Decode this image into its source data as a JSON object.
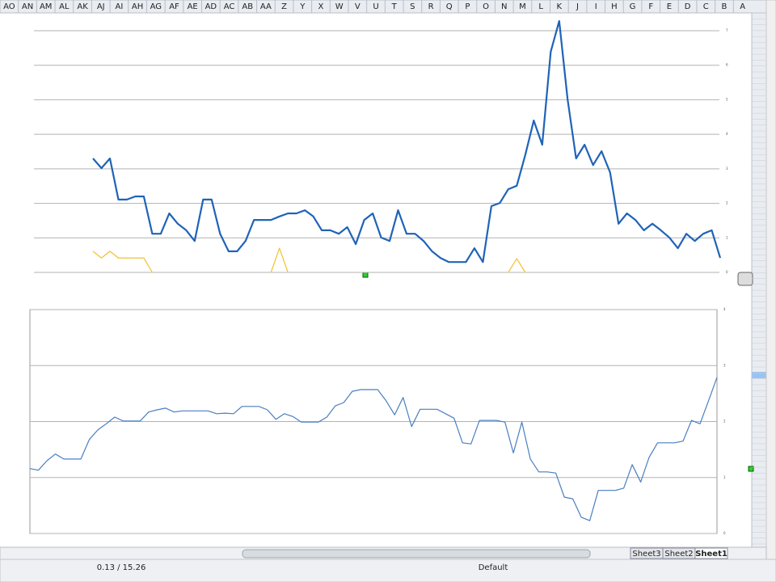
{
  "columns": [
    "A",
    "B",
    "C",
    "D",
    "E",
    "F",
    "G",
    "H",
    "I",
    "J",
    "K",
    "L",
    "M",
    "N",
    "O",
    "P",
    "Q",
    "R",
    "S",
    "T",
    "U",
    "V",
    "W",
    "X",
    "Y",
    "Z",
    "AA",
    "AB",
    "AC",
    "AD",
    "AE",
    "AF",
    "AG",
    "AH",
    "AI",
    "AJ",
    "AK",
    "AL",
    "AM",
    "AN",
    "AO"
  ],
  "tabs": [
    "Sheet1",
    "Sheet2",
    "Sheet3"
  ],
  "status": {
    "style": "Default",
    "selection": "0.13 / 15.26"
  },
  "chart_data": [
    {
      "type": "line",
      "ylim": [
        0,
        7
      ],
      "yticks": [
        0,
        1,
        2,
        3,
        4,
        5,
        6,
        7
      ],
      "grid": true,
      "series": [
        {
          "color": "#1f63b8",
          "values": [
            3.3,
            3.02,
            3.3,
            2.11,
            2.11,
            2.2,
            2.2,
            1.12,
            1.12,
            1.71,
            1.41,
            1.22,
            0.91,
            2.11,
            2.11,
            1.12,
            0.61,
            0.61,
            0.91,
            1.52,
            1.52,
            1.52,
            1.62,
            1.71,
            1.71,
            1.8,
            1.62,
            1.22,
            1.22,
            1.12,
            1.31,
            0.82,
            1.52,
            1.71,
            1.01,
            0.91,
            1.8,
            1.12,
            1.12,
            0.91,
            0.61,
            0.42,
            0.3,
            0.3,
            0.3,
            0.7,
            0.3,
            1.92,
            2.01,
            2.41,
            2.51,
            3.4,
            4.4,
            3.7,
            6.39,
            7.28,
            5.01,
            3.3,
            3.7,
            3.11,
            3.51,
            2.9,
            1.41,
            1.71,
            1.52,
            1.22,
            1.41,
            1.22,
            1.01,
            0.7,
            1.12,
            0.91,
            1.12,
            1.22,
            0.42
          ]
        },
        {
          "color": "#f2c12e",
          "values": [
            0.61,
            0.42,
            0.61,
            0.42,
            0.42,
            0.42,
            0.42,
            0,
            null,
            null,
            null,
            null,
            null,
            null,
            null,
            null,
            null,
            null,
            null,
            null,
            null,
            0,
            0.7,
            0,
            null,
            null,
            null,
            null,
            null,
            null,
            null,
            null,
            null,
            null,
            null,
            null,
            null,
            null,
            null,
            null,
            null,
            null,
            null,
            null,
            null,
            null,
            null,
            null,
            null,
            0,
            0.4,
            0,
            null,
            null,
            null,
            null,
            null,
            null,
            null,
            null,
            null,
            null,
            null,
            null,
            null,
            null,
            null,
            null,
            null,
            null,
            null,
            null,
            null,
            null,
            null
          ]
        }
      ]
    },
    {
      "type": "line",
      "ylim": [
        0,
        4
      ],
      "yticks": [
        0,
        1,
        2,
        3,
        4
      ],
      "grid": true,
      "series": [
        {
          "color": "#4a7fc1",
          "values": [
            1.16,
            1.13,
            1.3,
            1.42,
            1.33,
            1.33,
            1.33,
            1.68,
            1.85,
            1.96,
            2.08,
            2.01,
            2.01,
            2.01,
            2.17,
            2.21,
            2.24,
            2.17,
            2.19,
            2.19,
            2.19,
            2.19,
            2.14,
            2.15,
            2.14,
            2.27,
            2.27,
            2.27,
            2.21,
            2.04,
            2.14,
            2.09,
            1.99,
            1.99,
            1.99,
            2.08,
            2.28,
            2.34,
            2.54,
            2.57,
            2.57,
            2.57,
            2.37,
            2.12,
            2.43,
            1.91,
            2.22,
            2.22,
            2.22,
            2.14,
            2.06,
            1.62,
            1.6,
            2.02,
            2.02,
            2.02,
            1.99,
            1.44,
            1.99,
            1.33,
            1.1,
            1.1,
            1.08,
            0.65,
            0.62,
            0.29,
            0.23,
            0.77,
            0.77,
            0.77,
            0.81,
            1.23,
            0.92,
            1.36,
            1.62,
            1.62,
            1.62,
            1.65,
            2.02,
            1.96,
            2.37,
            2.79
          ]
        }
      ]
    }
  ]
}
